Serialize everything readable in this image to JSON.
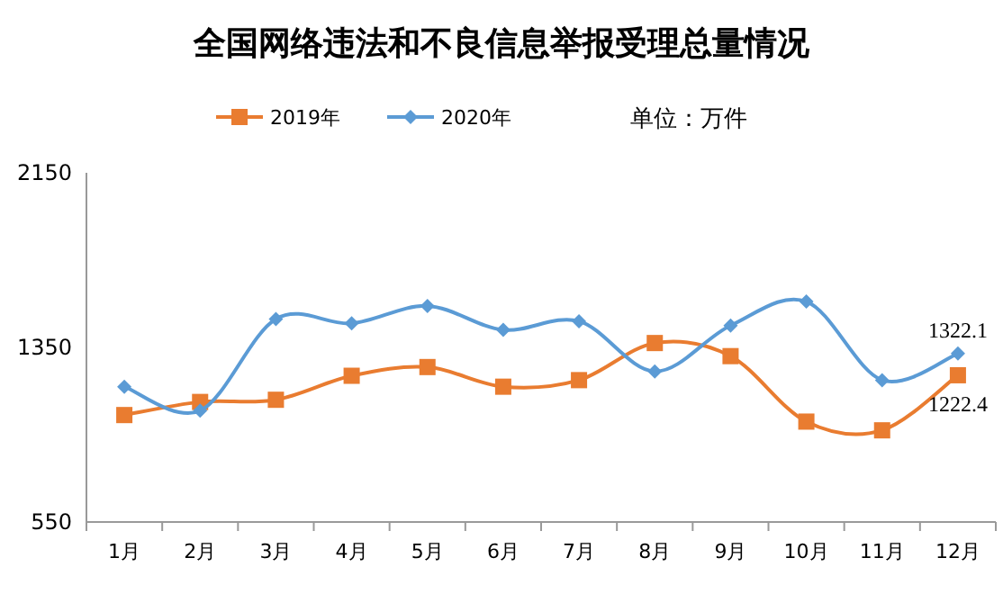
{
  "chart_data": {
    "type": "line",
    "title": "全国网络违法和不良信息举报受理总量情况",
    "annotations": [
      "单位：万件"
    ],
    "categories": [
      "1月",
      "2月",
      "3月",
      "4月",
      "5月",
      "6月",
      "7月",
      "8月",
      "9月",
      "10月",
      "11月",
      "12月"
    ],
    "series": [
      {
        "name": "2019年",
        "color": "#e97c30",
        "marker": "square",
        "values": [
          1040,
          1100,
          1110,
          1220,
          1260,
          1170,
          1200,
          1370,
          1310,
          1010,
          970,
          1222.4
        ],
        "value_labels": [
          null,
          null,
          null,
          null,
          null,
          null,
          null,
          null,
          null,
          null,
          null,
          "1222.4"
        ]
      },
      {
        "name": "2020年",
        "color": "#5b9bd5",
        "marker": "diamond",
        "values": [
          1170,
          1060,
          1480,
          1460,
          1540,
          1430,
          1470,
          1240,
          1450,
          1560,
          1200,
          1322.1
        ],
        "value_labels": [
          null,
          null,
          null,
          null,
          null,
          null,
          null,
          null,
          null,
          null,
          null,
          "1322.1"
        ]
      }
    ],
    "ylim": [
      550,
      2150
    ],
    "yticks": [
      550,
      1350,
      2150
    ],
    "grid": false,
    "legend": "top",
    "line_style": "solid"
  }
}
